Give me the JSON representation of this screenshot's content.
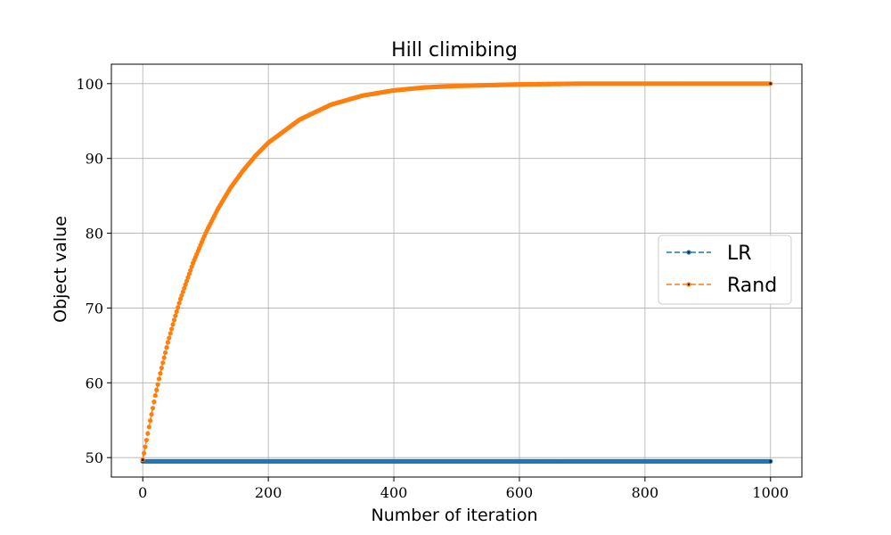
{
  "chart_data": {
    "type": "line",
    "title": "Hill climibing",
    "xlabel": "Number of iteration",
    "ylabel": "Object value",
    "xlim": [
      -50,
      1050
    ],
    "ylim": [
      47.4,
      102.6
    ],
    "xticks": [
      0,
      200,
      400,
      600,
      800,
      1000
    ],
    "yticks": [
      50,
      60,
      70,
      80,
      90,
      100
    ],
    "xtick_labels": [
      "0",
      "200",
      "400",
      "600",
      "800",
      "1000"
    ],
    "ytick_labels": [
      "50",
      "60",
      "70",
      "80",
      "90",
      "100"
    ],
    "grid": true,
    "legend_position": "center-right",
    "series": [
      {
        "name": "LR",
        "color": "#1f77b4",
        "line_style": "dashed",
        "marker": "dot",
        "x": [
          0,
          100,
          200,
          300,
          400,
          500,
          600,
          700,
          800,
          900,
          1000
        ],
        "y": [
          49.5,
          49.5,
          49.5,
          49.5,
          49.5,
          49.5,
          49.5,
          49.5,
          49.5,
          49.5,
          49.5
        ]
      },
      {
        "name": "Rand",
        "color": "#ff7f0e",
        "line_style": "dashed",
        "marker": "dot",
        "x": [
          0,
          10,
          20,
          30,
          40,
          50,
          60,
          80,
          100,
          120,
          140,
          160,
          180,
          200,
          250,
          300,
          350,
          400,
          450,
          500,
          550,
          600,
          650,
          700,
          800,
          900,
          1000
        ],
        "y": [
          49.7,
          54.1,
          58.3,
          62.0,
          65.4,
          68.4,
          71.2,
          76.0,
          80.0,
          83.3,
          86.1,
          88.4,
          90.4,
          92.1,
          95.2,
          97.2,
          98.4,
          99.1,
          99.5,
          99.7,
          99.8,
          99.9,
          99.95,
          100.0,
          100.0,
          100.0,
          100.0
        ]
      }
    ]
  }
}
